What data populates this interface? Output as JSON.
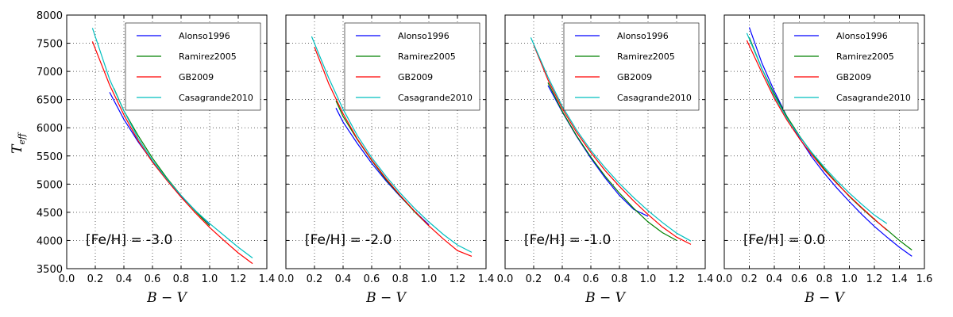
{
  "figure": {
    "ylabel": "T",
    "ylabel_sub": "eff"
  },
  "chart_data": [
    {
      "type": "line",
      "annotation": "[Fe/H] = -3.0",
      "xlabel": "B − V",
      "xlim": [
        0.0,
        1.4
      ],
      "ylim": [
        3500,
        8000
      ],
      "xticks": [
        "0.0",
        "0.2",
        "0.4",
        "0.6",
        "0.8",
        "1.0",
        "1.2",
        "1.4"
      ],
      "yticks": [
        "3500",
        "4000",
        "4500",
        "5000",
        "5500",
        "6000",
        "6500",
        "7000",
        "7500",
        "8000"
      ],
      "grid": true,
      "legend": "top-right",
      "series": [
        {
          "name": "Alonso1996",
          "color": "#0000ff",
          "x": [
            0.3,
            0.4,
            0.5,
            0.6,
            0.7,
            0.8,
            0.9,
            1.0
          ],
          "y": [
            6630,
            6150,
            5750,
            5400,
            5080,
            4790,
            4530,
            4290
          ]
        },
        {
          "name": "Ramirez2005",
          "color": "#008000",
          "x": [
            0.33,
            0.4,
            0.5,
            0.6,
            0.7,
            0.8,
            0.9,
            1.0
          ],
          "y": [
            6700,
            6300,
            5860,
            5460,
            5110,
            4800,
            4520,
            4260
          ]
        },
        {
          "name": "GB2009",
          "color": "#ff0000",
          "x": [
            0.18,
            0.3,
            0.4,
            0.5,
            0.6,
            0.7,
            0.8,
            0.9,
            1.0,
            1.1,
            1.2,
            1.3
          ],
          "y": [
            7530,
            6760,
            6230,
            5770,
            5390,
            5070,
            4770,
            4490,
            4230,
            4000,
            3780,
            3590
          ]
        },
        {
          "name": "Casagrande2010",
          "color": "#00bfbf",
          "x": [
            0.18,
            0.3,
            0.4,
            0.5,
            0.6,
            0.7,
            0.8,
            0.9,
            1.0,
            1.1,
            1.2,
            1.3
          ],
          "y": [
            7770,
            6860,
            6300,
            5810,
            5420,
            5090,
            4800,
            4530,
            4300,
            4090,
            3880,
            3690
          ]
        }
      ]
    },
    {
      "type": "line",
      "annotation": "[Fe/H] = -2.0",
      "xlabel": "B − V",
      "xlim": [
        0.0,
        1.4
      ],
      "ylim": [
        3500,
        8000
      ],
      "xticks": [
        "0.0",
        "0.2",
        "0.4",
        "0.6",
        "0.8",
        "1.0",
        "1.2",
        "1.4"
      ],
      "yticks": [],
      "grid": true,
      "legend": "top-right",
      "series": [
        {
          "name": "Alonso1996",
          "color": "#0000ff",
          "x": [
            0.35,
            0.4,
            0.5,
            0.6,
            0.7,
            0.8,
            0.9,
            1.0
          ],
          "y": [
            6350,
            6100,
            5720,
            5370,
            5060,
            4780,
            4520,
            4280
          ]
        },
        {
          "name": "Ramirez2005",
          "color": "#008000",
          "x": [
            0.35,
            0.4,
            0.5,
            0.6,
            0.7,
            0.8,
            0.9,
            1.0
          ],
          "y": [
            6480,
            6200,
            5790,
            5420,
            5080,
            4790,
            4510,
            4260
          ]
        },
        {
          "name": "GB2009",
          "color": "#ff0000",
          "x": [
            0.2,
            0.3,
            0.4,
            0.5,
            0.6,
            0.7,
            0.8,
            0.9,
            1.0,
            1.1,
            1.2,
            1.3
          ],
          "y": [
            7430,
            6780,
            6250,
            5800,
            5430,
            5100,
            4800,
            4520,
            4260,
            4030,
            3820,
            3720
          ]
        },
        {
          "name": "Casagrande2010",
          "color": "#00bfbf",
          "x": [
            0.18,
            0.3,
            0.4,
            0.5,
            0.6,
            0.7,
            0.8,
            0.9,
            1.0,
            1.1,
            1.2,
            1.3
          ],
          "y": [
            7620,
            6880,
            6330,
            5860,
            5470,
            5140,
            4840,
            4570,
            4330,
            4110,
            3920,
            3790
          ]
        }
      ]
    },
    {
      "type": "line",
      "annotation": "[Fe/H] = -1.0",
      "xlabel": "B − V",
      "xlim": [
        0.0,
        1.4
      ],
      "ylim": [
        3500,
        8000
      ],
      "xticks": [
        "0.0",
        "0.2",
        "0.4",
        "0.6",
        "0.8",
        "1.0",
        "1.2",
        "1.4"
      ],
      "yticks": [],
      "grid": true,
      "legend": "top-right",
      "series": [
        {
          "name": "Alonso1996",
          "color": "#0000ff",
          "x": [
            0.3,
            0.4,
            0.5,
            0.6,
            0.7,
            0.8,
            0.9,
            1.0
          ],
          "y": [
            6750,
            6280,
            5850,
            5460,
            5110,
            4800,
            4550,
            4430
          ]
        },
        {
          "name": "Ramirez2005",
          "color": "#008000",
          "x": [
            0.3,
            0.4,
            0.5,
            0.6,
            0.7,
            0.8,
            0.9,
            1.0,
            1.1,
            1.2
          ],
          "y": [
            6800,
            6290,
            5860,
            5480,
            5140,
            4840,
            4570,
            4330,
            4140,
            4000
          ]
        },
        {
          "name": "GB2009",
          "color": "#ff0000",
          "x": [
            0.2,
            0.3,
            0.4,
            0.5,
            0.6,
            0.7,
            0.8,
            0.9,
            1.0,
            1.1,
            1.2,
            1.3
          ],
          "y": [
            7470,
            6850,
            6340,
            5920,
            5560,
            5240,
            4960,
            4700,
            4460,
            4240,
            4060,
            3930
          ]
        },
        {
          "name": "Casagrande2010",
          "color": "#00bfbf",
          "x": [
            0.18,
            0.3,
            0.4,
            0.5,
            0.6,
            0.7,
            0.8,
            0.9,
            1.0,
            1.1,
            1.2,
            1.3
          ],
          "y": [
            7600,
            6900,
            6380,
            5960,
            5600,
            5290,
            5010,
            4760,
            4530,
            4320,
            4130,
            3990
          ]
        }
      ]
    },
    {
      "type": "line",
      "annotation": "[Fe/H] = 0.0",
      "xlabel": "B − V",
      "xlim": [
        0.0,
        1.6
      ],
      "ylim": [
        3500,
        8000
      ],
      "xticks": [
        "0.0",
        "0.2",
        "0.4",
        "0.6",
        "0.8",
        "1.0",
        "1.2",
        "1.4",
        "1.6"
      ],
      "yticks": [],
      "grid": true,
      "legend": "top-right",
      "series": [
        {
          "name": "Alonso1996",
          "color": "#0000ff",
          "x": [
            0.2,
            0.3,
            0.4,
            0.5,
            0.6,
            0.7,
            0.8,
            0.9,
            1.0,
            1.1,
            1.2,
            1.3,
            1.4,
            1.5
          ],
          "y": [
            7780,
            7150,
            6650,
            6200,
            5820,
            5480,
            5190,
            4930,
            4690,
            4460,
            4250,
            4060,
            3880,
            3720
          ]
        },
        {
          "name": "Ramirez2005",
          "color": "#008000",
          "x": [
            0.2,
            0.3,
            0.4,
            0.5,
            0.6,
            0.7,
            0.8,
            0.9,
            1.0,
            1.1,
            1.2,
            1.3,
            1.4,
            1.5
          ],
          "y": [
            7600,
            7050,
            6600,
            6200,
            5860,
            5550,
            5270,
            5020,
            4780,
            4570,
            4370,
            4190,
            4000,
            3830
          ]
        },
        {
          "name": "GB2009",
          "color": "#ff0000",
          "x": [
            0.18,
            0.3,
            0.4,
            0.5,
            0.6,
            0.7,
            0.8,
            0.9,
            1.0,
            1.1,
            1.2,
            1.3
          ],
          "y": [
            7550,
            6980,
            6520,
            6140,
            5810,
            5520,
            5250,
            5010,
            4790,
            4580,
            4380,
            4180
          ]
        },
        {
          "name": "Casagrande2010",
          "color": "#00bfbf",
          "x": [
            0.18,
            0.3,
            0.4,
            0.5,
            0.6,
            0.7,
            0.8,
            0.9,
            1.0,
            1.1,
            1.2,
            1.3
          ],
          "y": [
            7680,
            7050,
            6560,
            6170,
            5850,
            5560,
            5300,
            5060,
            4840,
            4640,
            4450,
            4300
          ]
        }
      ]
    }
  ]
}
